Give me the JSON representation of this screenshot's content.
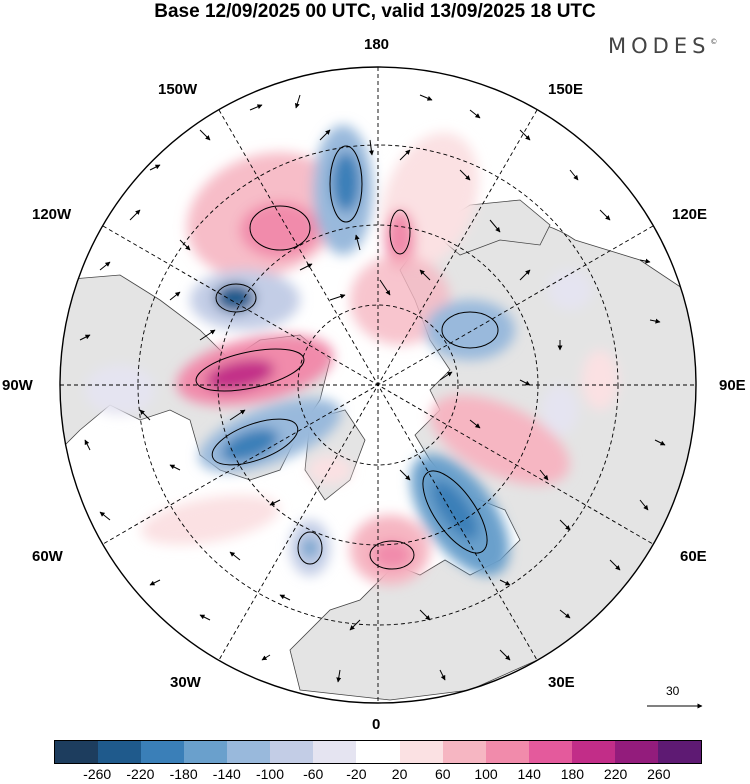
{
  "header": {
    "title": "Base 12/09/2025 00 UTC, valid 13/09/2025 18 UTC",
    "brand": "MODES",
    "brand_mark": "©"
  },
  "longitude_labels": {
    "top": "180",
    "top_left": "150W",
    "top_right": "150E",
    "upper_left": "120W",
    "upper_right": "120E",
    "left": "90W",
    "right": "90E",
    "lower_left": "60W",
    "lower_right": "60E",
    "bottom_left": "30W",
    "bottom_right": "30E",
    "bottom": "0"
  },
  "vector_reference": {
    "label": "30"
  },
  "colorbar": {
    "colors": [
      "#1d3d5e",
      "#1f5a8c",
      "#3a7fb8",
      "#6aa0cc",
      "#99b9dc",
      "#c3cde6",
      "#e5e4f1",
      "#ffffff",
      "#fbe1e3",
      "#f6b6c2",
      "#f18bab",
      "#e45a9c",
      "#c22d88",
      "#931c7c",
      "#5e1a73"
    ],
    "labels": [
      "-260",
      "-220",
      "-180",
      "-140",
      "-100",
      "-60",
      "-20",
      "20",
      "60",
      "100",
      "140",
      "180",
      "220",
      "260"
    ]
  }
}
